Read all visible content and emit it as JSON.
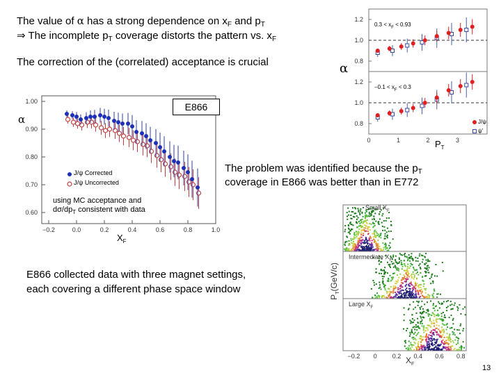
{
  "lines": {
    "l1": {
      "a": "The value of ",
      "sym": "α",
      "b": " has a strong dependence on x",
      "s1": "F",
      "c": " and p",
      "s2": "T"
    },
    "l2": {
      "arrow": "⇒",
      "a": " The incomplete p",
      "s1": "T",
      "b": " coverage distorts the pattern vs. x",
      "s2": "F"
    },
    "l3": "The correction of the (correlated) acceptance is crucial",
    "l4": {
      "a": "The problem was identified because the p",
      "s1": "T",
      "b": "coverage in E866 was better than in E772"
    },
    "l5": "E866 collected data with three magnet settings,",
    "l6": "each covering a different phase space window"
  },
  "alpha_plot": {
    "title": "E866",
    "ylabel": "α",
    "xlabel": "X",
    "xsub": "F",
    "note1": "using MC acceptance and",
    "note2a": "dσ/dp",
    "note2s": "T",
    "note2b": " consistent with data",
    "legend1": "J/ψ Corrected",
    "legend2": "J/ψ Uncorrected",
    "yticks": [
      "1.00",
      "0.90",
      "0.80",
      "0.70",
      "0.60"
    ],
    "xticks": [
      "−0.2",
      "0.0",
      "0.2",
      "0.4",
      "0.6",
      "0.8",
      "1.0"
    ]
  },
  "pt_plot": {
    "ylabel": "α",
    "xlabel": "P",
    "xsub": "T",
    "range_top": "0.3 < x",
    "range_top_sub": "F",
    "range_top_b": " < 0.93",
    "range_bot": "−0.1 < x",
    "range_bot_sub": "F",
    "range_bot_b": " < 0.3",
    "leg1": "J/ψ",
    "leg2": "ψ'",
    "yticks_top": [
      "1.2",
      "1.0",
      "0.8"
    ],
    "yticks_bot": [
      "1.2",
      "1.0",
      "0.8"
    ],
    "xticks": [
      "0",
      "1",
      "2",
      "3"
    ]
  },
  "scatter_plot": {
    "p1": "Small X",
    "p1s": "F",
    "p2": "Intermediate X",
    "p2s": "F",
    "p3": "Large X",
    "p3s": "F",
    "ylabel": "P",
    "ylabel_sub": "T",
    "ylabel_b": "(GeV/c)",
    "xlabel": "X",
    "xsub": "F",
    "xticks": [
      "−0.2",
      "0",
      "0.2",
      "0.4",
      "0.6",
      "0.8"
    ]
  },
  "chart_data": [
    {
      "type": "scatter",
      "title": "E866",
      "xlabel": "XF",
      "ylabel": "α",
      "ylim": [
        0.56,
        1.02
      ],
      "xlim": [
        -0.25,
        1.0
      ],
      "series": [
        {
          "name": "J/ψ Corrected",
          "x": [
            -0.07,
            -0.03,
            0.0,
            0.03,
            0.07,
            0.1,
            0.13,
            0.17,
            0.2,
            0.23,
            0.27,
            0.3,
            0.33,
            0.37,
            0.4,
            0.43,
            0.47,
            0.5,
            0.53,
            0.57,
            0.6,
            0.63,
            0.67,
            0.7,
            0.73,
            0.77,
            0.8,
            0.83,
            0.87
          ],
          "y": [
            0.955,
            0.95,
            0.945,
            0.935,
            0.94,
            0.945,
            0.945,
            0.95,
            0.945,
            0.94,
            0.93,
            0.925,
            0.92,
            0.92,
            0.91,
            0.89,
            0.885,
            0.875,
            0.86,
            0.85,
            0.835,
            0.82,
            0.8,
            0.785,
            0.78,
            0.76,
            0.745,
            0.72,
            0.69
          ]
        },
        {
          "name": "J/ψ Uncorrected",
          "x": [
            -0.07,
            -0.03,
            0.0,
            0.03,
            0.07,
            0.1,
            0.13,
            0.17,
            0.2,
            0.23,
            0.27,
            0.3,
            0.33,
            0.37,
            0.4,
            0.43,
            0.47,
            0.5,
            0.53,
            0.57,
            0.6,
            0.63,
            0.67,
            0.7,
            0.73,
            0.77,
            0.8,
            0.83,
            0.87
          ],
          "y": [
            0.935,
            0.925,
            0.92,
            0.915,
            0.925,
            0.925,
            0.915,
            0.905,
            0.895,
            0.9,
            0.895,
            0.885,
            0.875,
            0.87,
            0.86,
            0.855,
            0.845,
            0.84,
            0.82,
            0.805,
            0.79,
            0.775,
            0.765,
            0.745,
            0.735,
            0.73,
            0.71,
            0.7,
            0.67
          ]
        }
      ]
    },
    {
      "type": "scatter",
      "xlabel": "PT",
      "ylabel": "α",
      "title": "0.3 < xF < 0.93",
      "ylim": [
        0.7,
        1.3
      ],
      "xlim": [
        0,
        4
      ],
      "series": [
        {
          "name": "J/ψ",
          "x": [
            0.3,
            0.7,
            1.1,
            1.5,
            1.9,
            2.3,
            2.7,
            3.1,
            3.5
          ],
          "y": [
            0.9,
            0.92,
            0.94,
            0.97,
            1.0,
            1.04,
            1.07,
            1.1,
            1.13
          ]
        },
        {
          "name": "ψ'",
          "x": [
            0.3,
            0.8,
            1.3,
            1.8,
            2.3,
            2.8,
            3.3
          ],
          "y": [
            0.88,
            0.9,
            0.95,
            0.98,
            1.02,
            1.06,
            1.1
          ]
        }
      ]
    },
    {
      "type": "scatter",
      "xlabel": "PT",
      "ylabel": "α",
      "title": "−0.1 < xF < 0.3",
      "ylim": [
        0.7,
        1.3
      ],
      "xlim": [
        0,
        4
      ],
      "series": [
        {
          "name": "J/ψ",
          "x": [
            0.3,
            0.7,
            1.1,
            1.5,
            1.9,
            2.3,
            2.7,
            3.1,
            3.5
          ],
          "y": [
            0.88,
            0.9,
            0.92,
            0.95,
            1.0,
            1.05,
            1.12,
            1.16,
            1.2
          ]
        },
        {
          "name": "ψ'",
          "x": [
            0.3,
            0.8,
            1.3,
            1.8,
            2.3,
            2.8,
            3.3
          ],
          "y": [
            0.86,
            0.89,
            0.93,
            0.97,
            1.03,
            1.1,
            1.17
          ]
        }
      ]
    }
  ],
  "slide_number": "13"
}
